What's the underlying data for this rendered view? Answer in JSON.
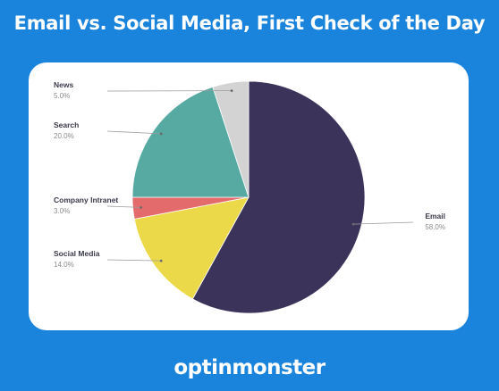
{
  "title": "Email vs. Social Media, First Check of the Day",
  "brand": {
    "name": "optinmonster"
  },
  "chart_data": {
    "type": "pie",
    "title": "Email vs. Social Media, First Check of the Day",
    "slices": [
      {
        "label": "Email",
        "value": 58.0,
        "display": "58.0%",
        "color": "#3c335a",
        "label_side": "right"
      },
      {
        "label": "Social Media",
        "value": 14.0,
        "display": "14.0%",
        "color": "#ebd94a",
        "label_side": "left"
      },
      {
        "label": "Company Intranet",
        "value": 3.0,
        "display": "3.0%",
        "color": "#e36b6b",
        "label_side": "left"
      },
      {
        "label": "Search",
        "value": 20.0,
        "display": "20.0%",
        "color": "#56aaa2",
        "label_side": "left"
      },
      {
        "label": "News",
        "value": 5.0,
        "display": "5.0%",
        "color": "#d3d3d3",
        "label_side": "left"
      }
    ],
    "start_angle": "top",
    "direction": "clockwise",
    "legend": "none"
  }
}
